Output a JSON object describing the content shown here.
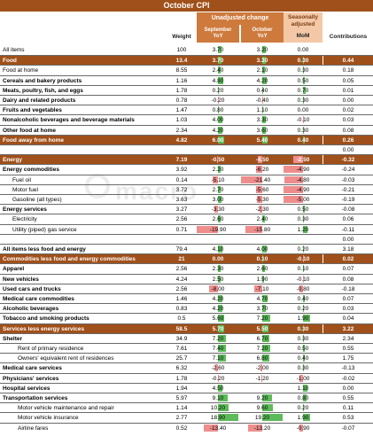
{
  "title": "October CPI",
  "headers": {
    "weight": "Weight",
    "unadjusted": "Unadjusted change",
    "september": "September",
    "october": "October",
    "yoy": "YoY",
    "seasonally": "Seasonally",
    "adjusted": "adjusted",
    "mom": "MoM",
    "contributions": "Contributions"
  },
  "watermark": "macro",
  "colors": {
    "category_band": "#a0501a",
    "header_band": "#cd7a3c",
    "positive_bar": "#5dbb5a",
    "negative_bar": "#ef8d8d"
  },
  "rows": [
    {
      "name": "All items",
      "weight": "100",
      "sep": "3.70",
      "oct": "3.20",
      "mom": "0.00",
      "contrib": "",
      "type": "normal"
    },
    {
      "name": "Food",
      "weight": "13.4",
      "sep": "3.70",
      "oct": "3.30",
      "mom": "0.30",
      "contrib": "0.44",
      "type": "cat"
    },
    {
      "name": "Food at home",
      "weight": "8.55",
      "sep": "2.40",
      "oct": "2.10",
      "mom": "0.30",
      "contrib": "0.18",
      "type": "normal"
    },
    {
      "name": "Cereals and bakery products",
      "weight": "1.16",
      "sep": "4.80",
      "oct": "4.20",
      "mom": "0.50",
      "contrib": "0.05",
      "type": "bold"
    },
    {
      "name": "Meats, poultry, fish, and eggs",
      "weight": "1.78",
      "sep": "0.20",
      "oct": "0.40",
      "mom": "0.70",
      "contrib": "0.01",
      "type": "bold"
    },
    {
      "name": "Dairy and related products",
      "weight": "0.78",
      "sep": "-0.20",
      "oct": "-0.40",
      "mom": "0.30",
      "contrib": "0.00",
      "type": "bold"
    },
    {
      "name": "Fruits and vegetables",
      "weight": "1.47",
      "sep": "0.80",
      "oct": "1.10",
      "mom": "0.00",
      "contrib": "0.02",
      "type": "bold"
    },
    {
      "name": "Nonalcoholic beverages and beverage materials",
      "weight": "1.03",
      "sep": "4.00",
      "oct": "3.30",
      "mom": "-0.10",
      "contrib": "0.03",
      "type": "bold"
    },
    {
      "name": "Other food at home",
      "weight": "2.34",
      "sep": "4.20",
      "oct": "3.60",
      "mom": "0.30",
      "contrib": "0.08",
      "type": "bold"
    },
    {
      "name": "Food away from home",
      "weight": "4.82",
      "sep": "6.00",
      "oct": "5.40",
      "mom": "0.40",
      "contrib": "0.26",
      "type": "cat"
    },
    {
      "name": "",
      "weight": "",
      "sep": "",
      "oct": "",
      "mom": "",
      "contrib": "0.00",
      "type": "blank"
    },
    {
      "name": "Energy",
      "weight": "7.19",
      "sep": "-0.50",
      "oct": "-4.50",
      "mom": "-2.50",
      "contrib": "-0.32",
      "type": "cat"
    },
    {
      "name": "Energy commodities",
      "weight": "3.92",
      "sep": "2.20",
      "oct": "-6.20",
      "mom": "-4.90",
      "contrib": "-0.24",
      "type": "bold"
    },
    {
      "name": "Fuel oil",
      "weight": "0.14",
      "sep": "-5.10",
      "oct": "-21.40",
      "mom": "-4.80",
      "contrib": "-0.03",
      "type": "indent"
    },
    {
      "name": "Motor fuel",
      "weight": "3.72",
      "sep": "2.70",
      "oct": "-5.60",
      "mom": "-4.90",
      "contrib": "-0.21",
      "type": "indent"
    },
    {
      "name": "Gasoline (all types)",
      "weight": "3.63",
      "sep": "3.00",
      "oct": "-5.30",
      "mom": "-5.00",
      "contrib": "-0.19",
      "type": "indent"
    },
    {
      "name": "Energy services",
      "weight": "3.27",
      "sep": "-3.30",
      "oct": "-2.30",
      "mom": "0.50",
      "contrib": "-0.08",
      "type": "bold"
    },
    {
      "name": "Electricity",
      "weight": "2.56",
      "sep": "2.60",
      "oct": "2.40",
      "mom": "0.30",
      "contrib": "0.06",
      "type": "indent"
    },
    {
      "name": "Utility (piped) gas service",
      "weight": "0.71",
      "sep": "-19.90",
      "oct": "-15.80",
      "mom": "1.20",
      "contrib": "-0.11",
      "type": "indent"
    },
    {
      "name": "",
      "weight": "",
      "sep": "",
      "oct": "",
      "mom": "",
      "contrib": "0.00",
      "type": "blank"
    },
    {
      "name": "All items less food and energy",
      "weight": "79.4",
      "sep": "4.10",
      "oct": "4.00",
      "mom": "0.20",
      "contrib": "3.18",
      "type": "bold"
    },
    {
      "name": "Commodities less food and energy commodities",
      "weight": "21",
      "sep": "0.00",
      "oct": "0.10",
      "mom": "-0.10",
      "contrib": "0.02",
      "type": "cat"
    },
    {
      "name": "Apparel",
      "weight": "2.56",
      "sep": "2.30",
      "oct": "2.60",
      "mom": "0.10",
      "contrib": "0.07",
      "type": "bold"
    },
    {
      "name": "New vehicles",
      "weight": "4.24",
      "sep": "2.50",
      "oct": "1.90",
      "mom": "-0.10",
      "contrib": "0.08",
      "type": "bold"
    },
    {
      "name": "Used cars and trucks",
      "weight": "2.56",
      "sep": "-8.00",
      "oct": "-7.10",
      "mom": "-0.80",
      "contrib": "-0.18",
      "type": "bold"
    },
    {
      "name": "Medical care commodities",
      "weight": "1.46",
      "sep": "4.20",
      "oct": "4.70",
      "mom": "0.40",
      "contrib": "0.07",
      "type": "bold"
    },
    {
      "name": "Alcoholic beverages",
      "weight": "0.83",
      "sep": "4.20",
      "oct": "3.70",
      "mom": "0.20",
      "contrib": "0.03",
      "type": "bold"
    },
    {
      "name": "Tobacco and smoking products",
      "weight": "0.5",
      "sep": "5.60",
      "oct": "7.20",
      "mom": "1.90",
      "contrib": "0.04",
      "type": "bold"
    },
    {
      "name": "Services less energy services",
      "weight": "58.5",
      "sep": "5.70",
      "oct": "5.50",
      "mom": "0.30",
      "contrib": "3.22",
      "type": "cat"
    },
    {
      "name": "Shelter",
      "weight": "34.9",
      "sep": "7.20",
      "oct": "6.70",
      "mom": "0.30",
      "contrib": "2.34",
      "type": "bold"
    },
    {
      "name": "Rent of primary residence",
      "weight": "7.61",
      "sep": "7.40",
      "oct": "7.20",
      "mom": "0.50",
      "contrib": "0.55",
      "type": "indent2"
    },
    {
      "name": "Owners' equivalent rent of residences",
      "weight": "25.7",
      "sep": "7.10",
      "oct": "6.80",
      "mom": "0.40",
      "contrib": "1.75",
      "type": "indent2"
    },
    {
      "name": "Medical care services",
      "weight": "6.32",
      "sep": "-2.60",
      "oct": "-2.00",
      "mom": "0.30",
      "contrib": "-0.13",
      "type": "bold"
    },
    {
      "name": "Physicians' services",
      "weight": "1.78",
      "sep": "-0.20",
      "oct": "-1.20",
      "mom": "-1.00",
      "contrib": "-0.02",
      "type": "bold"
    },
    {
      "name": "Hospital services",
      "weight": "1.94",
      "sep": "4.50",
      "oct": "",
      "mom": "1.10",
      "contrib": "0.00",
      "type": "bold"
    },
    {
      "name": "Transportation services",
      "weight": "5.97",
      "sep": "9.10",
      "oct": "9.20",
      "mom": "0.80",
      "contrib": "0.55",
      "type": "bold"
    },
    {
      "name": "Motor vehicle maintenance and repair",
      "weight": "1.14",
      "sep": "10.20",
      "oct": "9.60",
      "mom": "0.20",
      "contrib": "0.11",
      "type": "indent2"
    },
    {
      "name": "Motor vehicle insurance",
      "weight": "2.77",
      "sep": "18.90",
      "oct": "19.20",
      "mom": "1.90",
      "contrib": "0.53",
      "type": "indent2"
    },
    {
      "name": "Airline fares",
      "weight": "0.52",
      "sep": "-13.40",
      "oct": "-13.20",
      "mom": "-0.90",
      "contrib": "-0.07",
      "type": "indent2"
    }
  ]
}
